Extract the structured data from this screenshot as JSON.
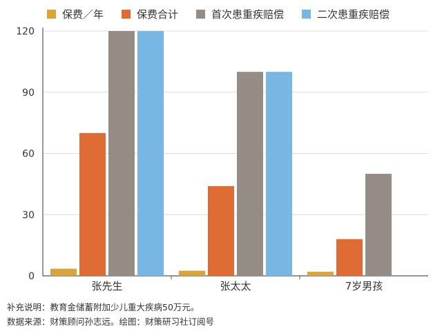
{
  "chart_data": {
    "type": "bar",
    "categories": [
      "张先生",
      "张太太",
      "7岁男孩"
    ],
    "series": [
      {
        "name": "保费／年",
        "color": "#d9a53a",
        "values": [
          3.5,
          2.5,
          2
        ]
      },
      {
        "name": "保费合计",
        "color": "#df6b35",
        "values": [
          70,
          44,
          18
        ]
      },
      {
        "name": "首次患重疾赔偿",
        "color": "#958c85",
        "values": [
          120,
          100,
          50
        ]
      },
      {
        "name": "二次患重疾赔偿",
        "color": "#78b6e4",
        "values": [
          120,
          100,
          null
        ]
      }
    ],
    "ylim": [
      0,
      120
    ],
    "yticks": [
      0,
      30,
      60,
      90,
      120
    ],
    "legend_position": "top",
    "grid": true
  },
  "footnotes": {
    "note": "补充说明：教育金储蓄附加少儿重大疾病50万元。",
    "source": "数据来源：财策顾问孙志远。绘图：财策研习社订阅号"
  }
}
